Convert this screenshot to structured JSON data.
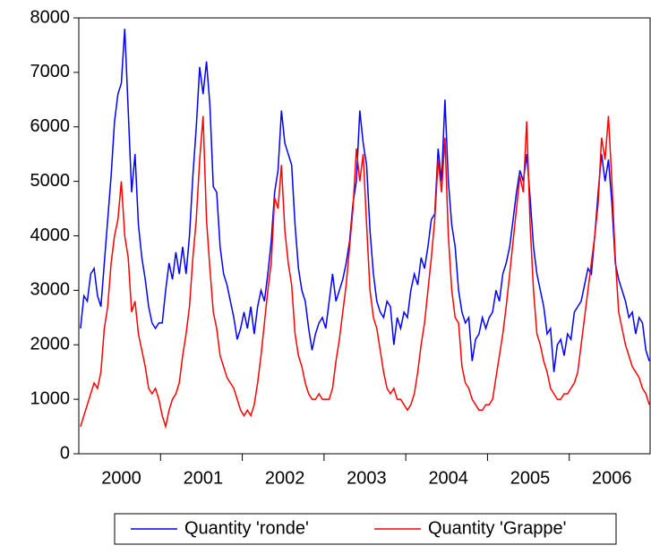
{
  "chart_data": {
    "type": "line",
    "categories": [
      null,
      null,
      null,
      null,
      null,
      null,
      null,
      null,
      null,
      null,
      null,
      null,
      "2000",
      null,
      null,
      null,
      null,
      null,
      null,
      null,
      null,
      null,
      null,
      null,
      null,
      null,
      null,
      null,
      null,
      null,
      null,
      null,
      null,
      null,
      null,
      null,
      "2001",
      null,
      null,
      null,
      null,
      null,
      null,
      null,
      null,
      null,
      null,
      null,
      null,
      null,
      null,
      null,
      null,
      null,
      null,
      null,
      null,
      null,
      null,
      null,
      "2002",
      null,
      null,
      null,
      null,
      null,
      null,
      null,
      null,
      null,
      null,
      null,
      null,
      null,
      null,
      null,
      null,
      null,
      null,
      null,
      null,
      null,
      null,
      null,
      "2003",
      null,
      null,
      null,
      null,
      null,
      null,
      null,
      null,
      null,
      null,
      null,
      null,
      null,
      null,
      null,
      null,
      null,
      null,
      null,
      null,
      null,
      null,
      null,
      "2004",
      null,
      null,
      null,
      null,
      null,
      null,
      null,
      null,
      null,
      null,
      null,
      null,
      null,
      null,
      null,
      null,
      null,
      null,
      null,
      null,
      null,
      null,
      null,
      "2005",
      null,
      null,
      null,
      null,
      null,
      null,
      null,
      null,
      null,
      null,
      null,
      null,
      null,
      null,
      null,
      null,
      null,
      null,
      null,
      null,
      null,
      null,
      null,
      "2006",
      null,
      null,
      null,
      null,
      null,
      null,
      null,
      null,
      null,
      null,
      null
    ],
    "series": [
      {
        "name": "Quantity 'ronde'",
        "color": "#0000ff",
        "values": [
          2300,
          2900,
          2800,
          3300,
          3400,
          2900,
          2700,
          3500,
          4300,
          5100,
          6100,
          6600,
          6800,
          7800,
          6300,
          4800,
          5500,
          4200,
          3600,
          3200,
          2700,
          2400,
          2300,
          2400,
          2400,
          3000,
          3500,
          3200,
          3700,
          3300,
          3800,
          3300,
          4000,
          5100,
          6000,
          7100,
          6600,
          7200,
          6400,
          4900,
          4800,
          3800,
          3300,
          3100,
          2800,
          2500,
          2100,
          2300,
          2600,
          2300,
          2700,
          2200,
          2700,
          3000,
          2800,
          3300,
          3900,
          4800,
          5200,
          6300,
          5700,
          5500,
          5300,
          4200,
          3400,
          3000,
          2800,
          2300,
          1900,
          2200,
          2400,
          2500,
          2300,
          2800,
          3300,
          2800,
          3000,
          3200,
          3500,
          3900,
          4600,
          5000,
          6300,
          5700,
          5300,
          4100,
          3300,
          2800,
          2600,
          2500,
          2800,
          2700,
          2000,
          2500,
          2300,
          2600,
          2500,
          3000,
          3300,
          3100,
          3600,
          3400,
          3800,
          4300,
          4400,
          5600,
          5000,
          6500,
          5000,
          4200,
          3800,
          3000,
          2600,
          2400,
          2500,
          1700,
          2100,
          2200,
          2500,
          2300,
          2500,
          2600,
          3000,
          2800,
          3300,
          3500,
          3800,
          4300,
          4800,
          5200,
          5000,
          5500,
          4700,
          3800,
          3300,
          3000,
          2700,
          2200,
          2300,
          1500,
          2000,
          2100,
          1800,
          2200,
          2100,
          2600,
          2700,
          2800,
          3100,
          3400,
          3300,
          4000,
          4800,
          5500,
          5000,
          5400,
          4600,
          3500,
          3200,
          3000,
          2800,
          2500,
          2600,
          2200,
          2500,
          2400,
          1900,
          1700
        ]
      },
      {
        "name": "Quantity 'Grappe'",
        "color": "#ff0000",
        "values": [
          500,
          700,
          900,
          1100,
          1300,
          1200,
          1500,
          2300,
          2700,
          3500,
          4000,
          4300,
          5000,
          4000,
          3600,
          2600,
          2800,
          2200,
          1900,
          1600,
          1200,
          1100,
          1200,
          1000,
          700,
          500,
          800,
          1000,
          1100,
          1300,
          1800,
          2200,
          2700,
          3600,
          4300,
          5400,
          6200,
          4300,
          3400,
          2600,
          2300,
          1800,
          1600,
          1400,
          1300,
          1200,
          1000,
          800,
          700,
          800,
          700,
          900,
          1300,
          1800,
          2400,
          3000,
          3500,
          4700,
          4500,
          5300,
          4100,
          3500,
          3100,
          2200,
          1800,
          1600,
          1300,
          1100,
          1000,
          1000,
          1100,
          1000,
          1000,
          1000,
          1200,
          1700,
          2100,
          2600,
          3100,
          3800,
          4500,
          5600,
          5000,
          5500,
          4200,
          3000,
          2500,
          2300,
          1900,
          1500,
          1200,
          1100,
          1200,
          1000,
          1000,
          900,
          800,
          900,
          1100,
          1500,
          2000,
          2400,
          3000,
          3600,
          4300,
          5400,
          4800,
          5800,
          4000,
          3000,
          2500,
          2400,
          1600,
          1300,
          1200,
          1000,
          900,
          800,
          800,
          900,
          900,
          1000,
          1400,
          1800,
          2200,
          2700,
          3300,
          3900,
          4500,
          5100,
          4800,
          6100,
          4200,
          3000,
          2200,
          2000,
          1700,
          1500,
          1200,
          1100,
          1000,
          1000,
          1100,
          1100,
          1200,
          1300,
          1500,
          2000,
          2500,
          3000,
          3500,
          4000,
          4600,
          5800,
          5400,
          6200,
          5000,
          3600,
          2600,
          2300,
          2000,
          1800,
          1600,
          1500,
          1400,
          1200,
          1100,
          900
        ]
      }
    ],
    "ylim": [
      0,
      8000
    ],
    "yticks": [
      0,
      1000,
      2000,
      3000,
      4000,
      5000,
      6000,
      7000,
      8000
    ],
    "legend": "bottom"
  }
}
